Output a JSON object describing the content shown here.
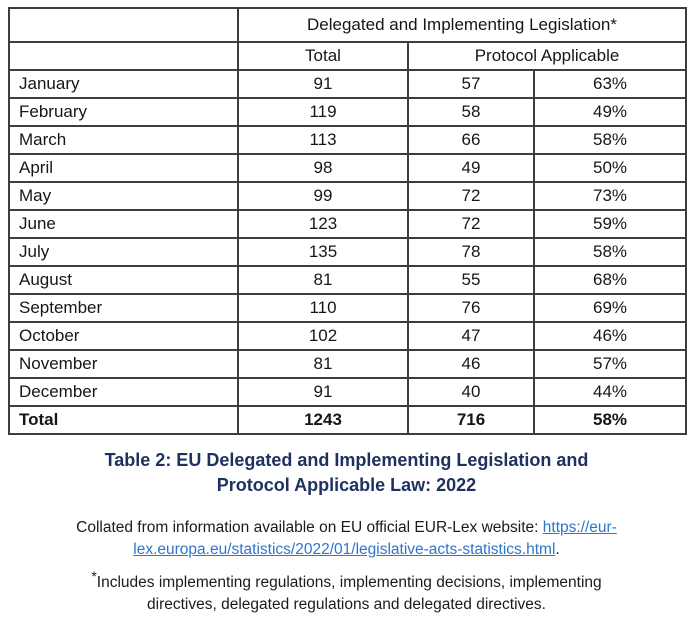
{
  "table": {
    "header_title": "Delegated and Implementing Legislation*",
    "col_total": "Total",
    "col_protocol": "Protocol Applicable",
    "rows": [
      {
        "label": "January",
        "total": "91",
        "protocol": "57",
        "percent": "63%"
      },
      {
        "label": "February",
        "total": "119",
        "protocol": "58",
        "percent": "49%"
      },
      {
        "label": "March",
        "total": "113",
        "protocol": "66",
        "percent": "58%"
      },
      {
        "label": "April",
        "total": "98",
        "protocol": "49",
        "percent": "50%"
      },
      {
        "label": "May",
        "total": "99",
        "protocol": "72",
        "percent": "73%"
      },
      {
        "label": "June",
        "total": "123",
        "protocol": "72",
        "percent": "59%"
      },
      {
        "label": "July",
        "total": "135",
        "protocol": "78",
        "percent": "58%"
      },
      {
        "label": "August",
        "total": "81",
        "protocol": "55",
        "percent": "68%"
      },
      {
        "label": "September",
        "total": "110",
        "protocol": "76",
        "percent": "69%"
      },
      {
        "label": "October",
        "total": "102",
        "protocol": "47",
        "percent": "46%"
      },
      {
        "label": "November",
        "total": "81",
        "protocol": "46",
        "percent": "57%"
      },
      {
        "label": "December",
        "total": "91",
        "protocol": "40",
        "percent": "44%"
      },
      {
        "label": "Total",
        "total": "1243",
        "protocol": "716",
        "percent": "58%",
        "bold": true
      }
    ],
    "border_color": "#3d3d3d"
  },
  "caption": {
    "line1": "Table 2: EU Delegated and Implementing Legislation and",
    "line2": "Protocol Applicable Law: 2022",
    "color": "#1f3160"
  },
  "source": {
    "prefix": "Collated from information available on EU official EUR-Lex website: ",
    "link_line1": "https://eur-",
    "link_line2": "lex.europa.eu/statistics/2022/01/legislative-acts-statistics.html",
    "suffix": ".",
    "link_color": "#2e75cc"
  },
  "footnote": {
    "asterisk": "*",
    "line1": "Includes implementing regulations, implementing decisions, implementing",
    "line2": "directives, delegated regulations and delegated directives."
  }
}
